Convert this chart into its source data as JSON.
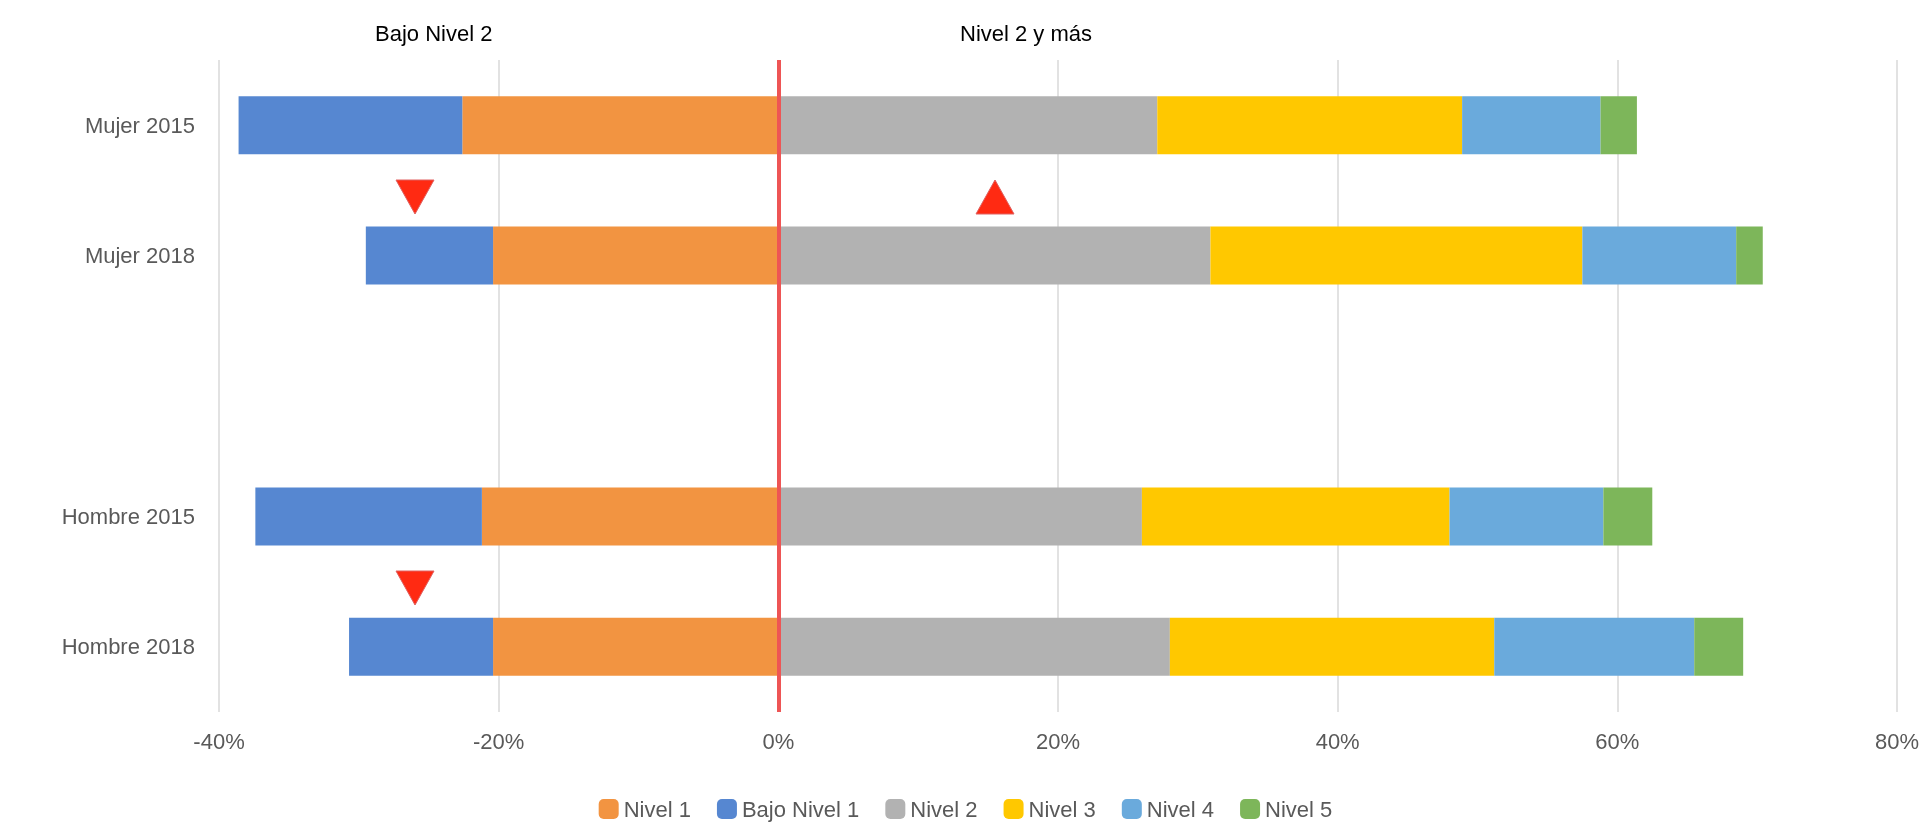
{
  "chart_data": {
    "type": "bar",
    "orientation": "horizontal",
    "stacked": true,
    "categories": [
      "Mujer 2015",
      "Mujer 2018",
      null,
      "Hombre 2015",
      "Hombre 2018"
    ],
    "series": [
      {
        "name": "Nivel 1",
        "color": "#f29441",
        "values": [
          -22.6,
          -20.4,
          null,
          -21.2,
          -20.4
        ]
      },
      {
        "name": "Bajo Nivel 1",
        "color": "#5687d1",
        "values": [
          -16.0,
          -9.1,
          null,
          -16.2,
          -10.3
        ]
      },
      {
        "name": "Nivel 2",
        "color": "#b2b2b2",
        "values": [
          27.1,
          30.9,
          null,
          26.0,
          28.0
        ]
      },
      {
        "name": "Nivel 3",
        "color": "#ffc800",
        "values": [
          21.8,
          26.6,
          null,
          22.0,
          23.2
        ]
      },
      {
        "name": "Nivel 4",
        "color": "#6aaadc",
        "values": [
          9.9,
          11.0,
          null,
          11.0,
          14.3
        ]
      },
      {
        "name": "Nivel 5",
        "color": "#7db65a",
        "values": [
          2.6,
          1.9,
          null,
          3.5,
          3.5
        ]
      }
    ],
    "xlim": [
      -40,
      80
    ],
    "xticks": [
      {
        "value": -40,
        "label": "-40%"
      },
      {
        "value": -20,
        "label": "-20%"
      },
      {
        "value": 0,
        "label": "0%"
      },
      {
        "value": 20,
        "label": "20%"
      },
      {
        "value": 40,
        "label": "40%"
      },
      {
        "value": 60,
        "label": "60%"
      },
      {
        "value": 80,
        "label": "80%"
      }
    ],
    "ref_lines": [
      {
        "axis": "x",
        "value": 0,
        "color": "#ee5555"
      }
    ],
    "annotations": [
      "Bajo Nivel 2",
      "Nivel 2 y más"
    ],
    "grid": "x",
    "legend": "bottom"
  }
}
